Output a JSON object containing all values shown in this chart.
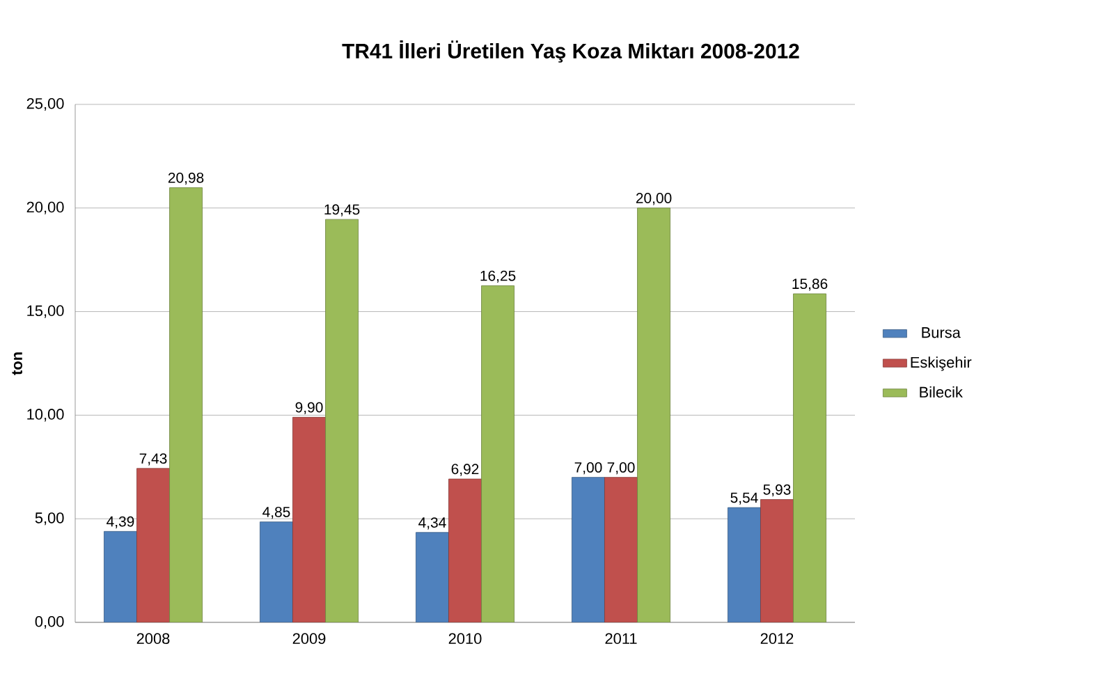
{
  "chart_data": {
    "type": "bar",
    "title": "TR41 İlleri Üretilen Yaş Koza Miktarı 2008-2012",
    "ylabel": "ton",
    "categories": [
      "2008",
      "2009",
      "2010",
      "2011",
      "2012"
    ],
    "series": [
      {
        "name": "Bursa",
        "color": "#4f81bd",
        "values": [
          4.39,
          4.85,
          4.34,
          7.0,
          5.54
        ],
        "value_labels": [
          "4,39",
          "4,85",
          "4,34",
          "7,00",
          "5,54"
        ]
      },
      {
        "name": "Eskişehir",
        "color": "#c0504d",
        "values": [
          7.43,
          9.9,
          6.92,
          7.0,
          5.93
        ],
        "value_labels": [
          "7,43",
          "9,90",
          "6,92",
          "7,00",
          "5,93"
        ]
      },
      {
        "name": "Bilecik",
        "color": "#9bbb59",
        "values": [
          20.98,
          19.45,
          16.25,
          20.0,
          15.86
        ],
        "value_labels": [
          "20,98",
          "19,45",
          "16,25",
          "20,00",
          "15,86"
        ]
      }
    ],
    "ylim": [
      0,
      25
    ],
    "yticks": [
      {
        "value": 0,
        "label": "0,00"
      },
      {
        "value": 5,
        "label": "5,00"
      },
      {
        "value": 10,
        "label": "10,00"
      },
      {
        "value": 15,
        "label": "15,00"
      },
      {
        "value": 20,
        "label": "20,00"
      },
      {
        "value": 25,
        "label": "25,00"
      }
    ],
    "grid": "y",
    "legend": "right"
  }
}
